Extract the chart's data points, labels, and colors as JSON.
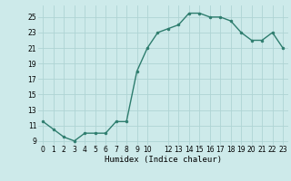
{
  "x": [
    0,
    1,
    2,
    3,
    4,
    5,
    6,
    7,
    8,
    9,
    10,
    11,
    12,
    13,
    14,
    15,
    16,
    17,
    18,
    19,
    20,
    21,
    22,
    23
  ],
  "y": [
    11.5,
    10.5,
    9.5,
    9.0,
    10.0,
    10.0,
    10.0,
    11.5,
    11.5,
    18.0,
    21.0,
    23.0,
    23.5,
    24.0,
    25.5,
    25.5,
    25.0,
    25.0,
    24.5,
    23.0,
    22.0,
    22.0,
    23.0,
    21.0
  ],
  "xlabel": "Humidex (Indice chaleur)",
  "ylim": [
    8.5,
    26.5
  ],
  "xlim": [
    -0.5,
    23.5
  ],
  "yticks": [
    9,
    11,
    13,
    15,
    17,
    19,
    21,
    23,
    25
  ],
  "xticks": [
    0,
    1,
    2,
    3,
    4,
    5,
    6,
    7,
    8,
    9,
    10,
    12,
    13,
    14,
    15,
    16,
    17,
    18,
    19,
    20,
    21,
    22,
    23
  ],
  "xtick_labels": [
    "0",
    "1",
    "2",
    "3",
    "4",
    "5",
    "6",
    "7",
    "8",
    "9",
    "10",
    "12",
    "13",
    "14",
    "15",
    "16",
    "17",
    "18",
    "19",
    "20",
    "21",
    "22",
    "23"
  ],
  "line_color": "#2e7d6e",
  "bg_color": "#cdeaea",
  "grid_color": "#afd4d4",
  "marker_size": 2.0,
  "line_width": 1.0,
  "tick_fontsize": 5.5,
  "xlabel_fontsize": 6.5
}
